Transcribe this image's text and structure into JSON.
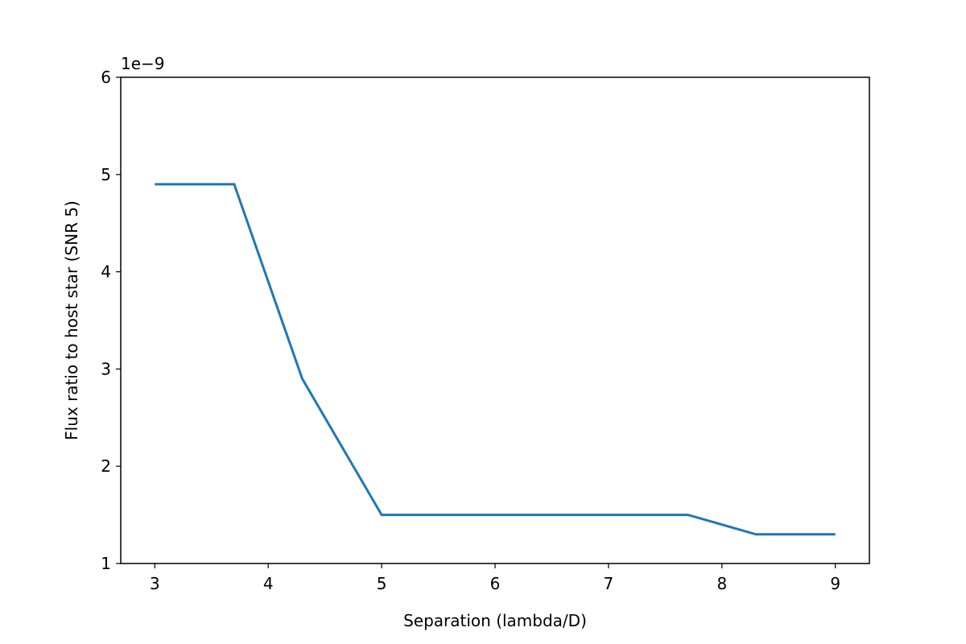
{
  "chart_data": {
    "type": "line",
    "xlabel": "Separation (lambda/D)",
    "ylabel": "Flux ratio to host star (SNR 5)",
    "y_offset_text": "1e−9",
    "x": [
      3,
      3.7,
      4.3,
      5,
      7.7,
      8.3,
      9
    ],
    "series": [
      {
        "color": "#1f77b4",
        "values": [
          4.9,
          4.9,
          2.9,
          1.5,
          1.5,
          1.3,
          1.3
        ]
      }
    ],
    "xlim": [
      2.7,
      9.3
    ],
    "xticks": [
      3,
      4,
      5,
      6,
      7,
      8,
      9
    ],
    "ylim": [
      1,
      6
    ],
    "yticks": [
      1,
      2,
      3,
      4,
      5,
      6
    ],
    "grid": false
  }
}
